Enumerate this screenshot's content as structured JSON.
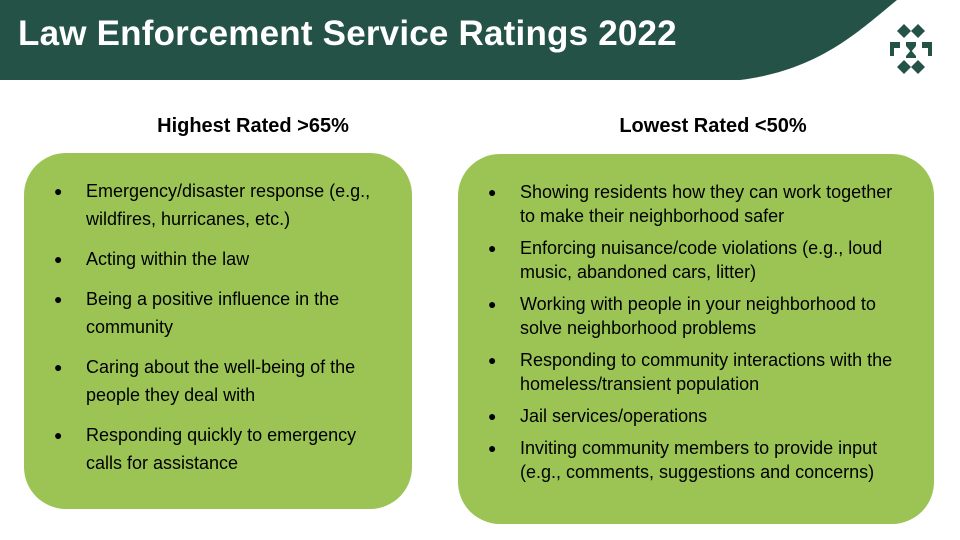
{
  "header": {
    "title": "Law Enforcement Service Ratings 2022",
    "bar_color": "#245246",
    "logo_icon": "county-seal-logo-icon"
  },
  "highest": {
    "heading": "Highest Rated >65%",
    "items": [
      "Emergency/disaster response (e.g., wildfires, hurricanes, etc.)",
      "Acting within the law",
      "Being a positive influence in the community",
      "Caring about the well-being of the people they deal with",
      "Responding quickly to emergency calls for assistance"
    ]
  },
  "lowest": {
    "heading": "Lowest Rated <50%",
    "items": [
      "Showing residents how they can work together to make their neighborhood safer",
      "Enforcing nuisance/code violations (e.g., loud music, abandoned cars, litter)",
      "Working with people in your neighborhood to solve neighborhood problems",
      "Responding to community interactions with the homeless/transient population",
      "Jail services/operations",
      "Inviting community members to provide input (e.g., comments, suggestions and concerns)"
    ]
  },
  "panel_color": "#9bc455",
  "bullet_glyph": "●"
}
